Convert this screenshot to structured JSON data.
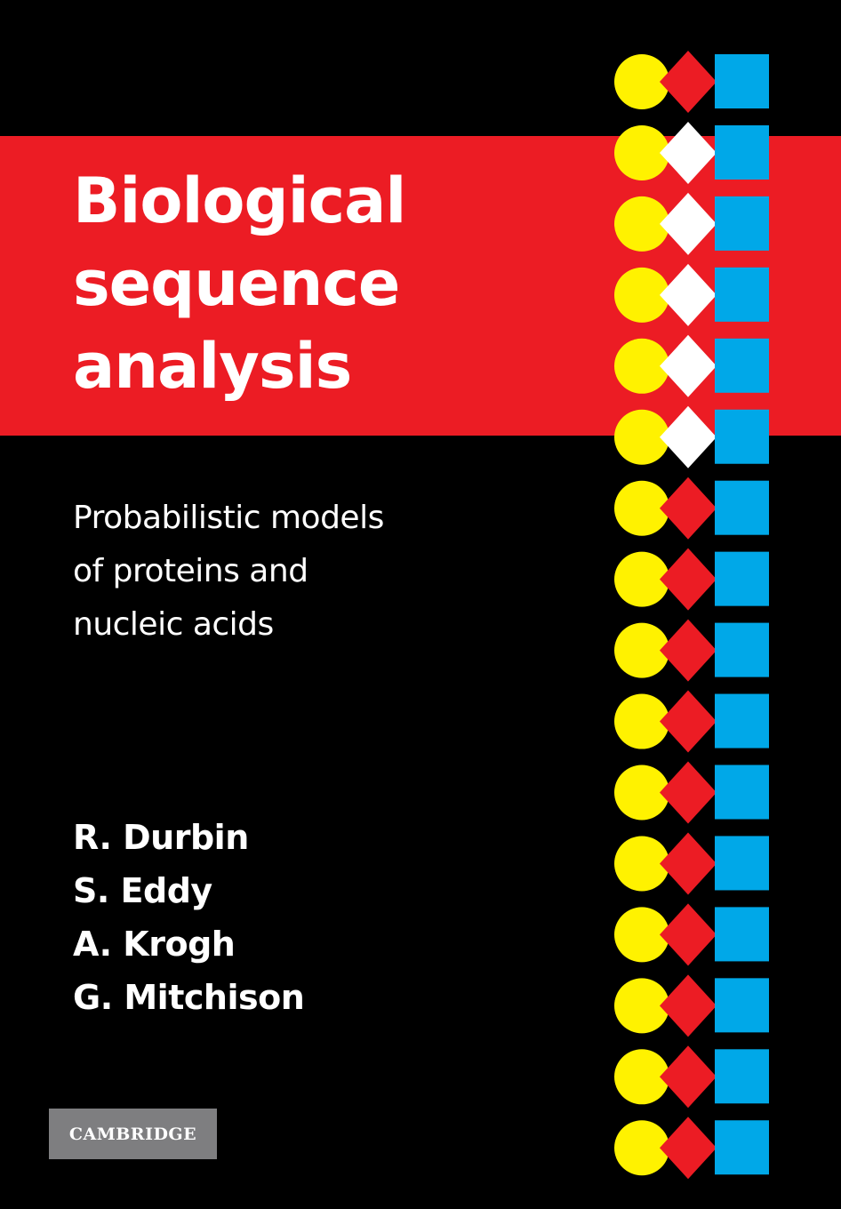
{
  "cover": {
    "title_lines": [
      "Biological",
      "sequence",
      "analysis"
    ],
    "subtitle_lines": [
      "Probabilistic models",
      "of proteins and",
      "nucleic acids"
    ],
    "authors": [
      "R. Durbin",
      "S. Eddy",
      "A. Krogh",
      "G. Mitchison"
    ],
    "publisher": "CAMBRIDGE"
  },
  "colors": {
    "background": "#000000",
    "band": "#ec1c24",
    "circle": "#fff200",
    "diamond_red": "#ec1c24",
    "diamond_white": "#ffffff",
    "square": "#00a8e8",
    "logo": "#7e7e80"
  },
  "pattern": {
    "row_count": 16,
    "diamond_colors": [
      "red",
      "white",
      "white",
      "white",
      "white",
      "white",
      "red",
      "red",
      "red",
      "red",
      "red",
      "red",
      "red",
      "red",
      "red",
      "red"
    ]
  }
}
